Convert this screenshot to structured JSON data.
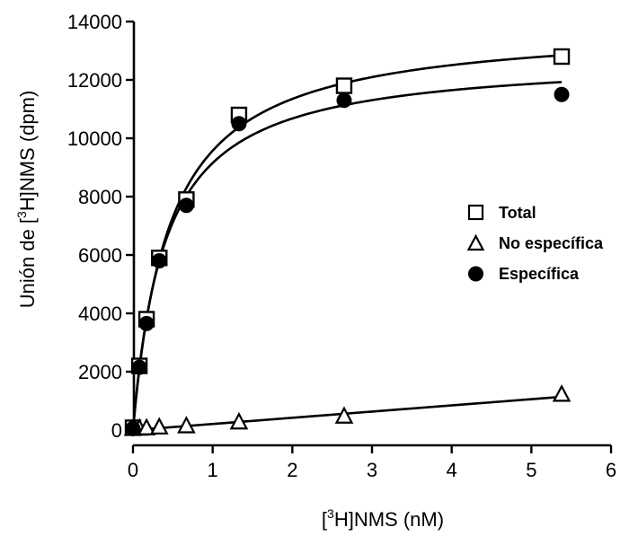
{
  "chart_data": {
    "type": "scatter",
    "title": "",
    "xlabel": {
      "prefix": "[",
      "sup": "3",
      "suffix": "H]NMS (nM)"
    },
    "ylabel": {
      "prefix": "Unión de [",
      "sup": "3",
      "suffix": "H]NMS (dpm)"
    },
    "xlim": [
      0,
      6
    ],
    "ylim": [
      0,
      14000
    ],
    "x_ticks": [
      "0",
      "1",
      "2",
      "3",
      "4",
      "5",
      "6"
    ],
    "y_ticks": [
      "0",
      "2000",
      "4000",
      "6000",
      "8000",
      "10000",
      "12000",
      "14000"
    ],
    "grid": false,
    "legend_position": "center-right",
    "series": [
      {
        "name": "Total",
        "marker": "open-square",
        "color": "#000000",
        "x": [
          0.0,
          0.08,
          0.17,
          0.33,
          0.67,
          1.33,
          2.65,
          5.38
        ],
        "y": [
          80,
          2200,
          3800,
          5900,
          7900,
          10800,
          11800,
          12800
        ]
      },
      {
        "name": "No específica",
        "marker": "open-triangle",
        "color": "#000000",
        "x": [
          0.0,
          0.08,
          0.17,
          0.33,
          0.67,
          1.33,
          2.65,
          5.38
        ],
        "y": [
          30,
          40,
          50,
          80,
          120,
          250,
          450,
          1200
        ]
      },
      {
        "name": "Específica",
        "marker": "filled-circle",
        "color": "#000000",
        "x": [
          0.0,
          0.08,
          0.17,
          0.33,
          0.67,
          1.33,
          2.65,
          5.38
        ],
        "y": [
          50,
          2150,
          3650,
          5800,
          7700,
          10500,
          11300,
          11500
        ]
      }
    ]
  }
}
